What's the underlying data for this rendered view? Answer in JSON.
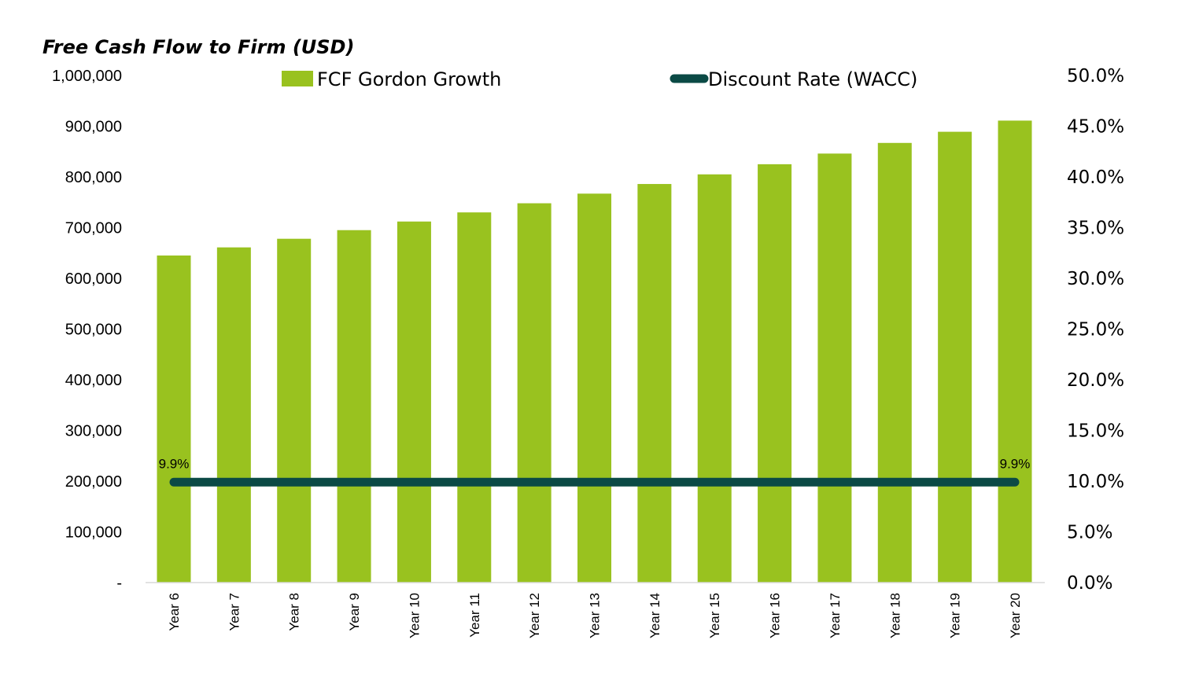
{
  "chart_data": {
    "type": "bar",
    "title": "Free Cash Flow to Firm (USD)",
    "categories": [
      "Year 6",
      "Year 7",
      "Year 8",
      "Year 9",
      "Year 10",
      "Year 11",
      "Year 12",
      "Year 13",
      "Year 14",
      "Year 15",
      "Year 16",
      "Year 17",
      "Year 18",
      "Year 19",
      "Year 20"
    ],
    "series": [
      {
        "name": "FCF Gordon Growth",
        "type": "bar",
        "axis": "left",
        "color": "#99c21f",
        "values": [
          645000,
          661000,
          678000,
          695000,
          712000,
          730000,
          748000,
          767000,
          786000,
          805000,
          825000,
          846000,
          867000,
          889000,
          911000
        ]
      },
      {
        "name": "Discount Rate (WACC)",
        "type": "line",
        "axis": "right",
        "color": "#0b4a45",
        "values": [
          0.099,
          0.099,
          0.099,
          0.099,
          0.099,
          0.099,
          0.099,
          0.099,
          0.099,
          0.099,
          0.099,
          0.099,
          0.099,
          0.099,
          0.099
        ],
        "data_labels": [
          {
            "index": 0,
            "text": "9.9%"
          },
          {
            "index": 14,
            "text": "9.9%"
          }
        ]
      }
    ],
    "y_left": {
      "ylim": [
        0,
        1000000
      ],
      "ticks": [
        0,
        100000,
        200000,
        300000,
        400000,
        500000,
        600000,
        700000,
        800000,
        900000,
        1000000
      ],
      "tick_labels": [
        "-",
        "100,000",
        "200,000",
        "300,000",
        "400,000",
        "500,000",
        "600,000",
        "700,000",
        "800,000",
        "900,000",
        "1,000,000"
      ]
    },
    "y_right": {
      "ylim": [
        0,
        0.5
      ],
      "ticks": [
        0,
        0.05,
        0.1,
        0.15,
        0.2,
        0.25,
        0.3,
        0.35,
        0.4,
        0.45,
        0.5
      ],
      "tick_labels": [
        "0.0%",
        "5.0%",
        "10.0%",
        "15.0%",
        "20.0%",
        "25.0%",
        "30.0%",
        "35.0%",
        "40.0%",
        "45.0%",
        "50.0%"
      ]
    },
    "legend": "top",
    "grid": false
  }
}
